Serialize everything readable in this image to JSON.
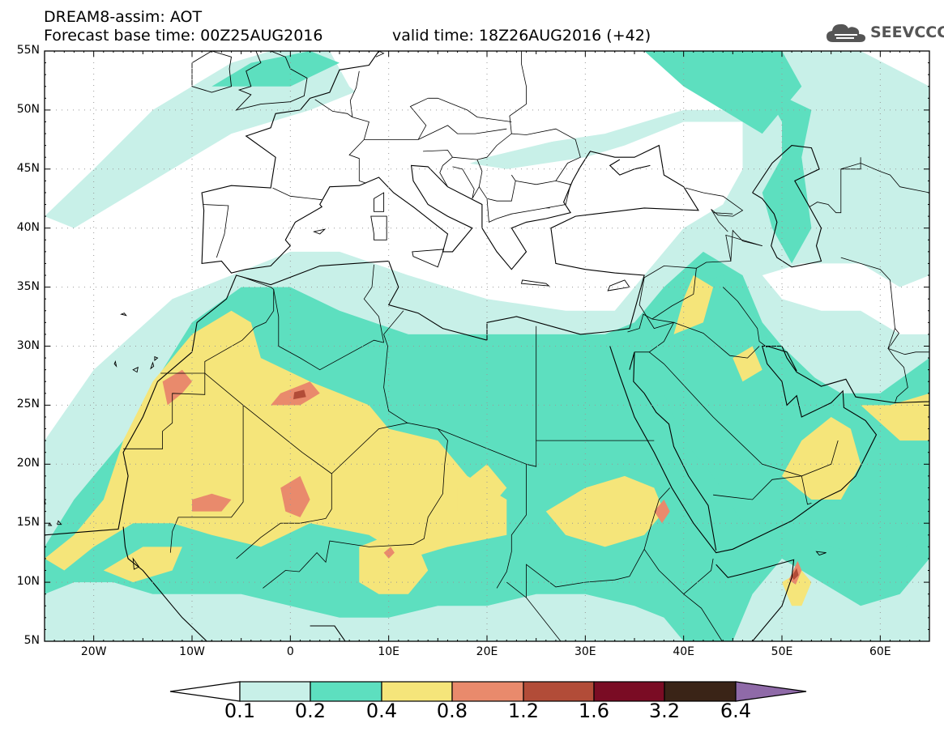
{
  "header": {
    "title_line1": "DREAM8-assim: AOT",
    "base_time_label": "Forecast base time: 00Z25AUG2016",
    "valid_time_label": "valid time: 18Z26AUG2016 (+42)",
    "brand": "SEEVCCC",
    "brand_icon": "cloud-icon"
  },
  "map": {
    "region": {
      "lon_min": -25,
      "lon_max": 65,
      "lat_min": 5,
      "lat_max": 55
    },
    "lat_ticks": [
      "55N",
      "50N",
      "45N",
      "40N",
      "35N",
      "30N",
      "25N",
      "20N",
      "15N",
      "10N",
      "5N"
    ],
    "lon_ticks": [
      "20W",
      "10W",
      "0",
      "10E",
      "20E",
      "30E",
      "40E",
      "50E",
      "60E"
    ],
    "grid": "dotted"
  },
  "colorbar": {
    "levels": [
      "0.1",
      "0.2",
      "0.4",
      "0.8",
      "1.2",
      "1.6",
      "3.2",
      "6.4"
    ],
    "colors": [
      "#ffffff",
      "#c8f0e8",
      "#5ddfbf",
      "#f5e57a",
      "#e98a6c",
      "#b24c38",
      "#7a0c24",
      "#3a2417",
      "#8f6aa8"
    ]
  }
}
